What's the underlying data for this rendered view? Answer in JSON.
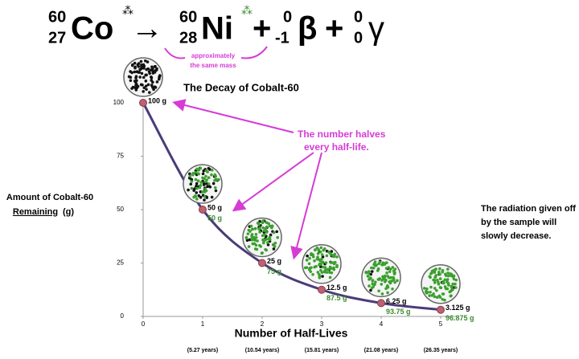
{
  "equation": {
    "co_mass": "60",
    "co_number": "27",
    "co": "Co",
    "arrow": "→",
    "ni_mass": "60",
    "ni_number": "28",
    "ni": "Ni",
    "plus1": "+",
    "beta_mass": "0",
    "beta_number": "-1",
    "beta": "β",
    "plus2": "+",
    "gamma_mass": "0",
    "gamma_number": "0",
    "gamma": "γ",
    "mass_note": [
      "approximately",
      "the same mass"
    ]
  },
  "chart_data": {
    "type": "line",
    "title": "The Decay of Cobalt-60",
    "x_label": "Number of Half-Lives",
    "y_label": [
      "Amount of Cobalt-60",
      "Remaining",
      "(g)"
    ],
    "x": [
      0,
      1,
      2,
      3,
      4,
      5
    ],
    "x_sublabels": [
      null,
      "(5.27 years)",
      "(10.54 years)",
      "(15.81 years)",
      "(21.08 years)",
      "(26.35 years)"
    ],
    "series": [
      {
        "name": "Cobalt-60",
        "color": "#4b3b7a",
        "values": [
          100,
          50,
          25,
          12.5,
          6.25,
          3.125
        ],
        "value_labels": [
          "100 g",
          "50 g",
          "25 g",
          "12.5 g",
          "6.25 g",
          "3.125 g"
        ]
      }
    ],
    "nickel": {
      "color": "#3a8a2e",
      "values": [
        null,
        50,
        75,
        87.5,
        93.75,
        96.875
      ],
      "value_labels": [
        null,
        "50 g",
        "75 g",
        "87.5 g",
        "93.75 g",
        "96.875 g"
      ]
    },
    "xlim": [
      0,
      5
    ],
    "ylim": [
      0,
      100
    ],
    "xticks": [
      0,
      1,
      2,
      3,
      4,
      5
    ],
    "yticks": [
      0,
      25,
      50,
      75,
      100
    ],
    "annotations": [
      [
        "The number halves",
        "every half-life."
      ],
      [
        "The radiation given off",
        "by the sample will",
        "slowly decrease."
      ]
    ]
  }
}
